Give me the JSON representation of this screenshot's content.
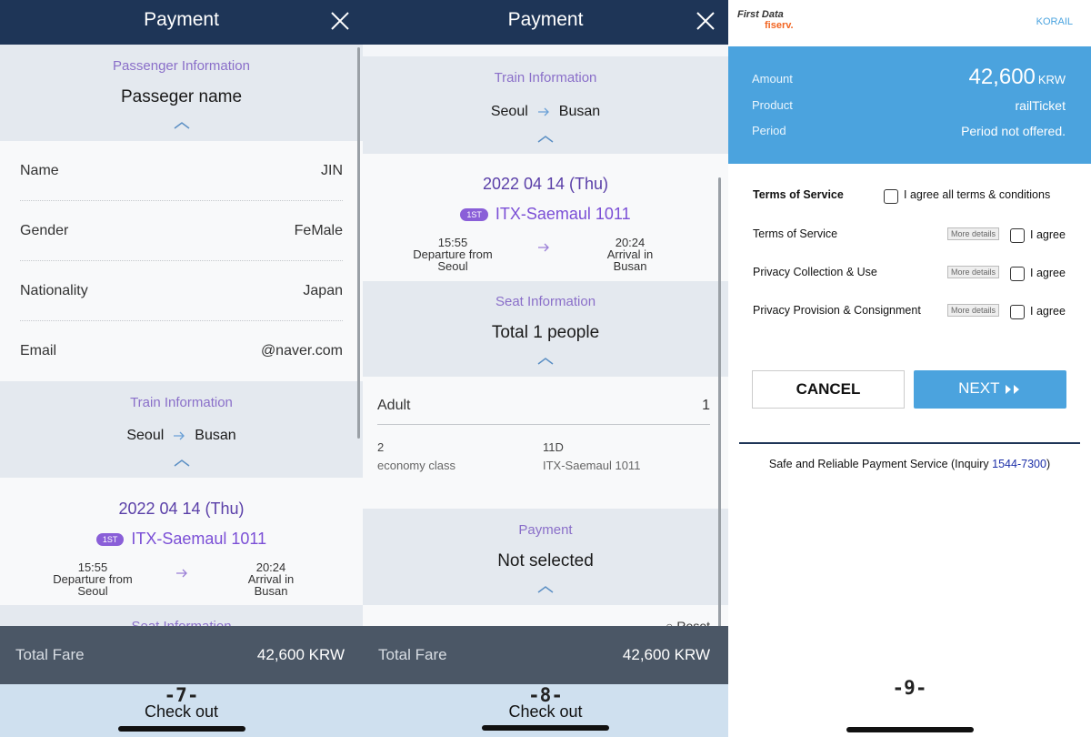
{
  "panel7": {
    "header_title": "Payment",
    "passenger_section_title": "Passenger Information",
    "passenger_name": "Passeger name",
    "fields": [
      {
        "label": "Name",
        "value": "JIN"
      },
      {
        "label": "Gender",
        "value": "FeMale"
      },
      {
        "label": "Nationality",
        "value": "Japan"
      },
      {
        "label": "Email",
        "value": "@naver.com"
      }
    ],
    "train_section_title": "Train Information",
    "route_from": "Seoul",
    "route_to": "Busan",
    "date": "2022 04 14 (Thu)",
    "class_badge": "1ST",
    "train_name": "ITX-Saemaul 1011",
    "departure_time": "15:55",
    "departure_label": "Departure from",
    "departure_station": "Seoul",
    "arrival_time": "20:24",
    "arrival_label": "Arrival in",
    "arrival_station": "Busan",
    "seat_section_title": "Seat Information",
    "total_fare_label": "Total Fare",
    "total_fare_value": "42,600 KRW",
    "step_number": "-7-",
    "checkout_label": "Check out"
  },
  "panel8": {
    "header_title": "Payment",
    "train_section_title": "Train Information",
    "route_from": "Seoul",
    "route_to": "Busan",
    "date": "2022 04 14 (Thu)",
    "class_badge": "1ST",
    "train_name": "ITX-Saemaul 1011",
    "departure_time": "15:55",
    "departure_label": "Departure from",
    "departure_station": "Seoul",
    "arrival_time": "20:24",
    "arrival_label": "Arrival in",
    "arrival_station": "Busan",
    "seat_section_title": "Seat Information",
    "seat_total": "Total 1 people",
    "adult_label": "Adult",
    "adult_count": "1",
    "car_number": "2",
    "car_class": "economy class",
    "seat_number": "11D",
    "seat_train": "ITX-Saemaul 1011",
    "payment_section_title": "Payment",
    "payment_status": "Not selected",
    "reset_label": "Reset",
    "total_fare_label": "Total Fare",
    "total_fare_value": "42,600 KRW",
    "step_number": "-8-",
    "checkout_label": "Check out"
  },
  "panel9": {
    "brand_first_data": "First Data",
    "brand_fiserv": "fiserv.",
    "merchant": "KORAIL",
    "amount_label": "Amount",
    "amount_value": "42,600",
    "amount_currency": "KRW",
    "product_label": "Product",
    "product_value": "railTicket",
    "period_label": "Period",
    "period_value": "Period not offered.",
    "terms_header": "Terms of Service",
    "agree_all_label": "I agree all terms & conditions",
    "terms": [
      {
        "label": "Terms of Service",
        "more": "More details",
        "agree": "I agree"
      },
      {
        "label": "Privacy Collection & Use",
        "more": "More details",
        "agree": "I agree"
      },
      {
        "label": "Privacy Provision & Consignment",
        "more": "More details",
        "agree": "I agree"
      }
    ],
    "cancel_label": "CANCEL",
    "next_label": "NEXT",
    "safe_text": "Safe and Reliable Payment Service (Inquiry ",
    "safe_phone": "1544-7300",
    "safe_close": ")",
    "step_number": "-9-"
  },
  "colors": {
    "header_navy": "#1e3557",
    "section_purple": "#8a6fc9",
    "fare_bar": "#4b5766",
    "checkout_bar": "#cfe0ef",
    "accent_blue": "#4ba3de"
  }
}
